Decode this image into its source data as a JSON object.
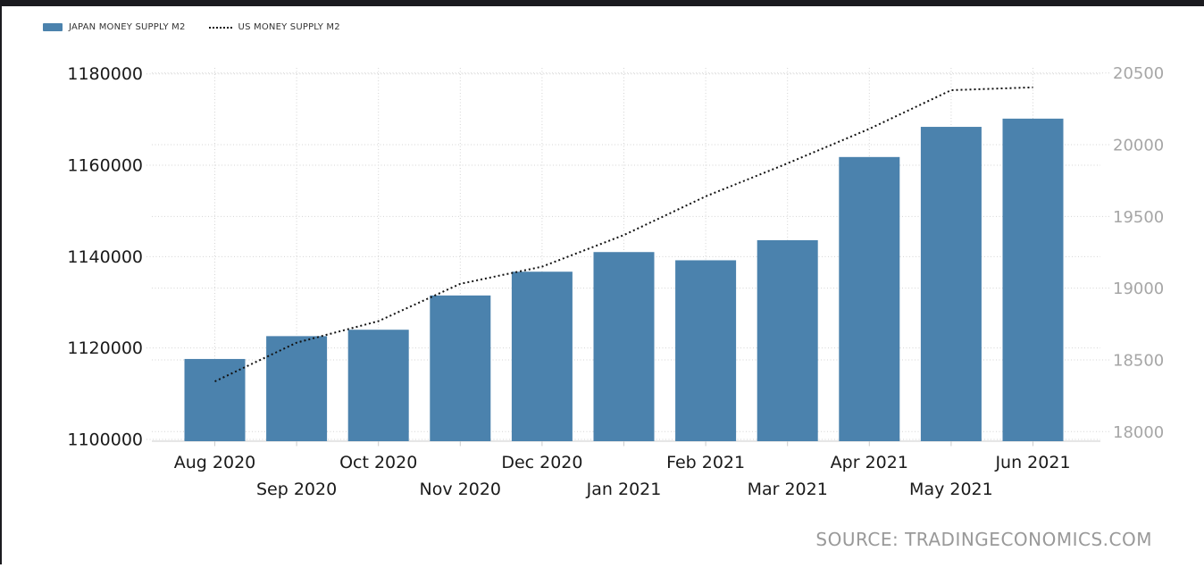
{
  "page": {
    "source_text": "SOURCE: TRADINGECONOMICS.COM"
  },
  "legend": {
    "items": [
      {
        "label": "JAPAN MONEY SUPPLY M2",
        "symbol": "bar-swatch",
        "color": "#4b82ad"
      },
      {
        "label": "US MONEY SUPPLY M2",
        "symbol": "dotted-line",
        "color": "#111111"
      }
    ]
  },
  "chart_data": {
    "type": "bar",
    "subtype": "bar-plus-dotted-line-dual-axis",
    "categories": [
      "Aug 2020",
      "Sep 2020",
      "Oct 2020",
      "Nov 2020",
      "Dec 2020",
      "Jan 2021",
      "Feb 2021",
      "Mar 2021",
      "Apr 2021",
      "May 2021",
      "Jun 2021"
    ],
    "series": [
      {
        "name": "JAPAN MONEY SUPPLY M2",
        "type": "bar",
        "axis": "left",
        "color": "#4b82ad",
        "values": [
          1117600,
          1122600,
          1124000,
          1131500,
          1136700,
          1141000,
          1139200,
          1143600,
          1161800,
          1168400,
          1170200
        ]
      },
      {
        "name": "US MONEY SUPPLY M2",
        "type": "line",
        "line_style": "dotted",
        "axis": "right",
        "color": "#111111",
        "values": [
          18350,
          18620,
          18770,
          19030,
          19150,
          19370,
          19640,
          19870,
          20110,
          20380,
          20400
        ]
      }
    ],
    "left_axis": {
      "range": [
        1100000,
        1180000
      ],
      "ticks": [
        1100000,
        1120000,
        1140000,
        1160000,
        1180000
      ],
      "tick_color": "#1a1a1a"
    },
    "right_axis": {
      "range": [
        18000,
        20500
      ],
      "ticks": [
        18000,
        18500,
        19000,
        19500,
        20000,
        20500
      ],
      "tick_color": "#a6a6a6"
    },
    "grid": {
      "style": "dotted",
      "horizontal": "both-axes",
      "vertical": "category-centers",
      "color": "#d4d4d4"
    },
    "legend_position": "top-left",
    "x_labels_staggered": true
  }
}
